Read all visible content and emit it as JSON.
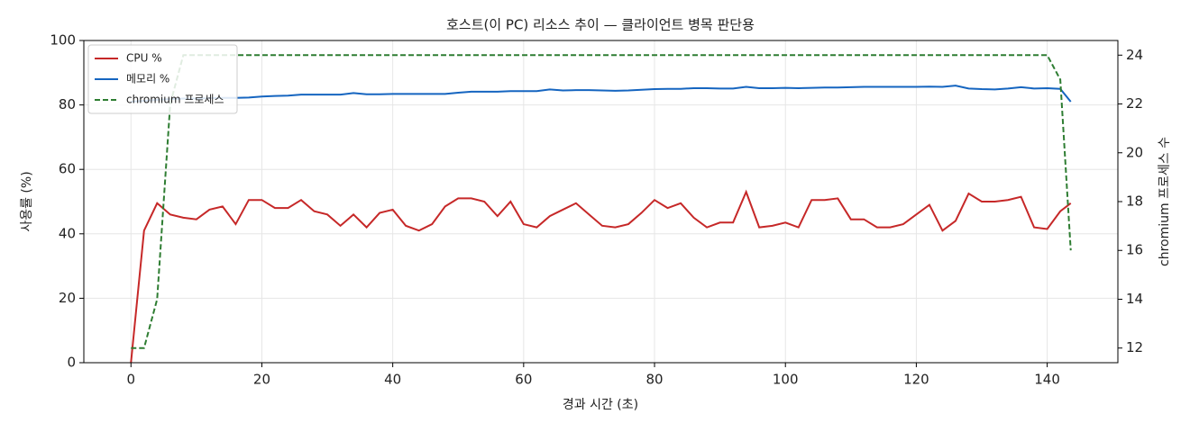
{
  "chart_data": {
    "type": "line",
    "title": "호스트(이 PC) 리소스 추이 — 클라이언트 병목 판단용",
    "xlabel": "경과 시간 (초)",
    "ylabel": "사용률 (%)",
    "y2label": "chromium 프로세스 수",
    "x": [
      0,
      2,
      4,
      6,
      8,
      10,
      12,
      14,
      16,
      18,
      20,
      22,
      24,
      26,
      28,
      30,
      32,
      34,
      36,
      38,
      40,
      42,
      44,
      46,
      48,
      50,
      52,
      54,
      56,
      58,
      60,
      62,
      64,
      66,
      68,
      70,
      72,
      74,
      76,
      78,
      80,
      82,
      84,
      86,
      88,
      90,
      92,
      94,
      96,
      98,
      100,
      102,
      104,
      106,
      108,
      110,
      112,
      114,
      116,
      118,
      120,
      122,
      124,
      126,
      128,
      130,
      132,
      134,
      136,
      138,
      140,
      142,
      143.6
    ],
    "series": [
      {
        "name": "CPU %",
        "color": "#c62828",
        "linestyle": "solid",
        "values": [
          0,
          41,
          49.5,
          46,
          45,
          44.5,
          47.5,
          48.5,
          43,
          50.5,
          50.5,
          48,
          48,
          50.5,
          47,
          46,
          42.5,
          46,
          42,
          46.5,
          47.5,
          42.5,
          41,
          43,
          48.5,
          51,
          51,
          50,
          45.5,
          50,
          43,
          42,
          45.5,
          47.5,
          49.5,
          46,
          42.5,
          42,
          43,
          46.5,
          50.5,
          48,
          49.5,
          45,
          42,
          43.5,
          43.5,
          53,
          42,
          42.5,
          43.5,
          42,
          50.5,
          50.5,
          51,
          44.5,
          44.5,
          42,
          42,
          43,
          46,
          49,
          41,
          44,
          52.5,
          50,
          50,
          50.5,
          51.5,
          42,
          41.5,
          47,
          49.5
        ]
      },
      {
        "name": "메모리 %",
        "color": "#1565c0",
        "linestyle": "solid",
        "values": [
          81,
          81.3,
          81.6,
          81.8,
          82,
          82,
          82.1,
          82.2,
          82.2,
          82.3,
          82.6,
          82.8,
          82.9,
          83.2,
          83.2,
          83.2,
          83.2,
          83.7,
          83.3,
          83.3,
          83.4,
          83.4,
          83.4,
          83.4,
          83.4,
          83.8,
          84.1,
          84.1,
          84.1,
          84.3,
          84.3,
          84.3,
          84.8,
          84.5,
          84.6,
          84.6,
          84.5,
          84.4,
          84.5,
          84.7,
          84.9,
          85,
          85,
          85.2,
          85.2,
          85.1,
          85.1,
          85.6,
          85.2,
          85.2,
          85.3,
          85.2,
          85.3,
          85.4,
          85.4,
          85.5,
          85.6,
          85.6,
          85.6,
          85.6,
          85.6,
          85.7,
          85.6,
          86,
          85.1,
          84.9,
          84.8,
          85.1,
          85.5,
          85.1,
          85.2,
          85,
          81
        ]
      },
      {
        "name": "chromium 프로세스",
        "color": "#2e7d32",
        "linestyle": "dashed",
        "axis": "y2",
        "values": [
          12,
          12,
          14,
          22,
          24,
          24,
          24,
          24,
          24,
          24,
          24,
          24,
          24,
          24,
          24,
          24,
          24,
          24,
          24,
          24,
          24,
          24,
          24,
          24,
          24,
          24,
          24,
          24,
          24,
          24,
          24,
          24,
          24,
          24,
          24,
          24,
          24,
          24,
          24,
          24,
          24,
          24,
          24,
          24,
          24,
          24,
          24,
          24,
          24,
          24,
          24,
          24,
          24,
          24,
          24,
          24,
          24,
          24,
          24,
          24,
          24,
          24,
          24,
          24,
          24,
          24,
          24,
          24,
          24,
          24,
          24,
          23,
          16
        ]
      }
    ],
    "xlim": [
      -7.2,
      150.8
    ],
    "xticks": [
      0,
      20,
      40,
      60,
      80,
      100,
      120,
      140
    ],
    "ylim": [
      0,
      100
    ],
    "yticks": [
      0,
      20,
      40,
      60,
      80,
      100
    ],
    "y2lim": [
      11.4,
      24.6
    ],
    "y2ticks": [
      12,
      14,
      16,
      18,
      20,
      22,
      24
    ],
    "grid": true,
    "legend": "upper left"
  }
}
